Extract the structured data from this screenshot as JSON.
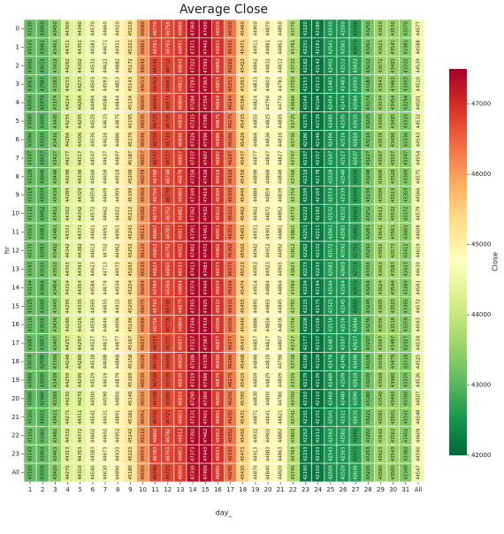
{
  "chart_data": {
    "type": "heatmap",
    "title": "Average Close",
    "xlabel": "day_",
    "ylabel": "hr",
    "columns": [
      "1",
      "2",
      "3",
      "4",
      "5",
      "6",
      "7",
      "8",
      "9",
      "10",
      "11",
      "12",
      "13",
      "14",
      "15",
      "16",
      "17",
      "18",
      "19",
      "20",
      "21",
      "22",
      "23",
      "24",
      "25",
      "26",
      "27",
      "28",
      "29",
      "30",
      "31",
      "All"
    ],
    "rows": [
      "0",
      "1",
      "2",
      "3",
      "4",
      "5",
      "6",
      "7",
      "8",
      "9",
      "10",
      "11",
      "12",
      "13",
      "14",
      "15",
      "16",
      "17",
      "18",
      "19",
      "20",
      "21",
      "22",
      "23",
      "All"
    ],
    "values": [
      [
        43130,
        43050,
        43450,
        44300,
        44340,
        44570,
        44660,
        44920,
        45210,
        46080,
        46770,
        46750,
        46880,
        47360,
        47430,
        46920,
        46320,
        45460,
        44900,
        44870,
        44850,
        43770,
        42220,
        42180,
        42530,
        42550,
        42660,
        43250,
        43610,
        43530,
        43370,
        44577
      ],
      [
        43141,
        43061,
        43461,
        44311,
        44351,
        44581,
        44671,
        44931,
        45221,
        46091,
        46781,
        46761,
        46891,
        47371,
        47441,
        46931,
        46331,
        45471,
        44911,
        44881,
        44861,
        43781,
        42231,
        42191,
        42541,
        42561,
        42671,
        43261,
        43621,
        43541,
        43381,
        44588
      ],
      [
        43092,
        43012,
        43412,
        44262,
        44302,
        44532,
        44622,
        44882,
        45172,
        46042,
        46732,
        46712,
        46842,
        47322,
        47392,
        46882,
        46282,
        45422,
        44862,
        44832,
        44812,
        43732,
        42182,
        42142,
        42492,
        42512,
        42622,
        43212,
        43572,
        43492,
        43332,
        44539
      ],
      [
        43063,
        42983,
        43383,
        44233,
        44273,
        44503,
        44593,
        44853,
        45143,
        46013,
        46703,
        46683,
        46813,
        47293,
        47363,
        46853,
        46253,
        45393,
        44833,
        44803,
        44783,
        43703,
        42153,
        42113,
        42463,
        42483,
        42593,
        43183,
        43543,
        43463,
        43303,
        44510
      ],
      [
        43054,
        42974,
        43374,
        44224,
        44264,
        44494,
        44584,
        44844,
        45134,
        46004,
        46694,
        46674,
        46804,
        47284,
        47354,
        46844,
        46244,
        45384,
        44824,
        44794,
        44774,
        43694,
        42144,
        42104,
        42454,
        42474,
        42584,
        43174,
        43534,
        43454,
        43294,
        44501
      ],
      [
        43085,
        43005,
        43405,
        44255,
        44295,
        44525,
        44615,
        44875,
        45165,
        46035,
        46725,
        46705,
        46835,
        47315,
        47385,
        46875,
        46275,
        45415,
        44855,
        44825,
        44805,
        43725,
        42175,
        42135,
        42485,
        42505,
        42615,
        43205,
        43565,
        43485,
        43325,
        44532
      ],
      [
        43096,
        43016,
        43416,
        44266,
        44306,
        44536,
        44626,
        44886,
        45176,
        46046,
        46736,
        46716,
        46846,
        47326,
        47396,
        46886,
        46286,
        45426,
        44866,
        44836,
        44816,
        43736,
        42186,
        42146,
        42496,
        42516,
        42626,
        43216,
        43576,
        43496,
        43336,
        44543
      ],
      [
        43107,
        43027,
        43427,
        44277,
        44317,
        44547,
        44637,
        44897,
        45187,
        46057,
        46747,
        46727,
        46857,
        47337,
        47407,
        46897,
        46297,
        45437,
        44877,
        44847,
        44827,
        43747,
        42197,
        42157,
        42507,
        42527,
        42637,
        43227,
        43587,
        43507,
        43347,
        44554
      ],
      [
        43128,
        43048,
        43448,
        44298,
        44338,
        44568,
        44658,
        44918,
        45208,
        46078,
        46768,
        46748,
        46878,
        47358,
        47428,
        46918,
        46318,
        45458,
        44898,
        44868,
        44848,
        43768,
        42218,
        42178,
        42528,
        42548,
        42658,
        43248,
        43608,
        43528,
        43368,
        44575
      ],
      [
        43119,
        43039,
        43439,
        44289,
        44329,
        44559,
        44649,
        44909,
        45199,
        46069,
        46759,
        46739,
        46869,
        47349,
        47419,
        46909,
        46309,
        45449,
        44889,
        44859,
        44839,
        43759,
        42209,
        42169,
        42519,
        42539,
        42649,
        43239,
        43599,
        43519,
        43359,
        44566
      ],
      [
        43132,
        43052,
        43452,
        44302,
        44342,
        44572,
        44662,
        44922,
        45212,
        46082,
        46772,
        46752,
        46882,
        47362,
        47432,
        46922,
        46322,
        45462,
        44902,
        44872,
        44852,
        43772,
        42222,
        42182,
        42532,
        42552,
        42662,
        43252,
        43612,
        43532,
        43372,
        44579
      ],
      [
        43161,
        43081,
        43481,
        44331,
        44371,
        44601,
        44691,
        44951,
        45241,
        46111,
        46801,
        46781,
        46911,
        47391,
        47461,
        46951,
        46351,
        45491,
        44931,
        44901,
        44881,
        43801,
        42251,
        42211,
        42561,
        42581,
        42691,
        43281,
        43641,
        43561,
        43401,
        44608
      ],
      [
        43172,
        43092,
        43492,
        44342,
        44382,
        44612,
        44702,
        44962,
        45252,
        46122,
        46812,
        46792,
        46922,
        47402,
        47472,
        46962,
        46362,
        45502,
        44942,
        44912,
        44892,
        43812,
        42262,
        42222,
        42572,
        42592,
        42702,
        43292,
        43652,
        43572,
        43412,
        44619
      ],
      [
        43183,
        43103,
        43503,
        44353,
        44393,
        44623,
        44713,
        44973,
        45263,
        46133,
        46823,
        46803,
        46933,
        47413,
        47483,
        46973,
        46373,
        45513,
        44953,
        44923,
        44903,
        43823,
        42273,
        42233,
        42583,
        42603,
        42713,
        43303,
        43663,
        43583,
        43423,
        44630
      ],
      [
        43144,
        43064,
        43464,
        44314,
        44354,
        44584,
        44674,
        44934,
        45224,
        46094,
        46784,
        46764,
        46894,
        47374,
        47444,
        46934,
        46334,
        45474,
        44914,
        44884,
        44864,
        43784,
        42234,
        42194,
        42544,
        42564,
        42674,
        43264,
        43624,
        43544,
        43384,
        44591
      ],
      [
        43125,
        43045,
        43445,
        44295,
        44335,
        44565,
        44655,
        44915,
        45205,
        46075,
        46765,
        46745,
        46875,
        47355,
        47425,
        46915,
        46315,
        45455,
        44895,
        44865,
        44845,
        43765,
        42215,
        42175,
        42525,
        42545,
        42655,
        43245,
        43605,
        43525,
        43365,
        44572
      ],
      [
        43116,
        43036,
        43436,
        44286,
        44326,
        44556,
        44646,
        44906,
        45196,
        46066,
        46756,
        46736,
        46866,
        47346,
        47416,
        46906,
        46306,
        45446,
        44886,
        44856,
        44836,
        43756,
        42206,
        42166,
        42516,
        42536,
        42646,
        43236,
        43596,
        43516,
        43356,
        44563
      ],
      [
        43087,
        43007,
        43407,
        44257,
        44297,
        44527,
        44617,
        44877,
        45167,
        46037,
        46727,
        46707,
        46837,
        47317,
        47387,
        46877,
        46277,
        45417,
        44857,
        44827,
        44807,
        43727,
        42177,
        42137,
        42487,
        42507,
        42617,
        43207,
        43567,
        43487,
        43327,
        44534
      ],
      [
        43078,
        42998,
        43398,
        44248,
        44288,
        44518,
        44608,
        44868,
        45158,
        46028,
        46718,
        46698,
        46828,
        47308,
        47378,
        46868,
        46268,
        45408,
        44848,
        44818,
        44798,
        43718,
        42168,
        42128,
        42478,
        42498,
        42608,
        43198,
        43558,
        43478,
        43318,
        44525
      ],
      [
        43089,
        43009,
        43409,
        44259,
        44299,
        44529,
        44619,
        44879,
        45169,
        46039,
        46729,
        46709,
        46839,
        47319,
        47389,
        46879,
        46279,
        45419,
        44859,
        44829,
        44809,
        43729,
        42179,
        42139,
        42489,
        42509,
        42619,
        43209,
        43569,
        43489,
        43329,
        44536
      ],
      [
        43060,
        42980,
        43380,
        44230,
        44270,
        44500,
        44590,
        44850,
        45140,
        46010,
        46700,
        46680,
        46810,
        47290,
        47360,
        46850,
        46250,
        45390,
        44830,
        44800,
        44780,
        43700,
        42150,
        42110,
        42460,
        42480,
        42590,
        43180,
        43540,
        43460,
        43300,
        44507
      ],
      [
        43101,
        43021,
        43421,
        44271,
        44311,
        44541,
        44631,
        44891,
        45181,
        46051,
        46741,
        46721,
        46851,
        47331,
        47401,
        46891,
        46291,
        45431,
        44871,
        44841,
        44821,
        43741,
        42191,
        42151,
        42501,
        42521,
        42631,
        43221,
        43581,
        43501,
        43341,
        44548
      ],
      [
        43162,
        43082,
        43482,
        44332,
        44372,
        44602,
        44692,
        44952,
        45242,
        46112,
        46802,
        46782,
        46912,
        47392,
        47462,
        46952,
        46352,
        45492,
        44932,
        44902,
        44882,
        43802,
        42252,
        42212,
        42562,
        42582,
        42692,
        43282,
        43642,
        43562,
        43402,
        44609
      ],
      [
        43143,
        43063,
        43463,
        44313,
        44353,
        44583,
        44673,
        44933,
        45223,
        46093,
        46783,
        46763,
        46893,
        47373,
        47443,
        46933,
        46333,
        45473,
        44913,
        44883,
        44863,
        43783,
        42233,
        42193,
        42543,
        42563,
        42673,
        43263,
        43623,
        43543,
        43383,
        44590
      ],
      [
        43100,
        43020,
        43420,
        44270,
        44310,
        44540,
        44630,
        44890,
        45180,
        46050,
        46740,
        46720,
        46850,
        47330,
        47400,
        46890,
        46290,
        45430,
        44870,
        44840,
        44820,
        43740,
        42190,
        42150,
        42500,
        42520,
        42630,
        43220,
        43580,
        43500,
        43340,
        44547
      ]
    ],
    "colorbar": {
      "label": "Close",
      "lim": [
        42000,
        47500
      ],
      "ticks": [
        42000,
        43000,
        44000,
        45000,
        46000,
        47000
      ],
      "cmap": [
        "#006837",
        "#1a9850",
        "#66bd63",
        "#a6d96a",
        "#d9ef8b",
        "#ffffbf",
        "#fee08b",
        "#fdae61",
        "#f46d43",
        "#d73027",
        "#a50026"
      ]
    }
  }
}
